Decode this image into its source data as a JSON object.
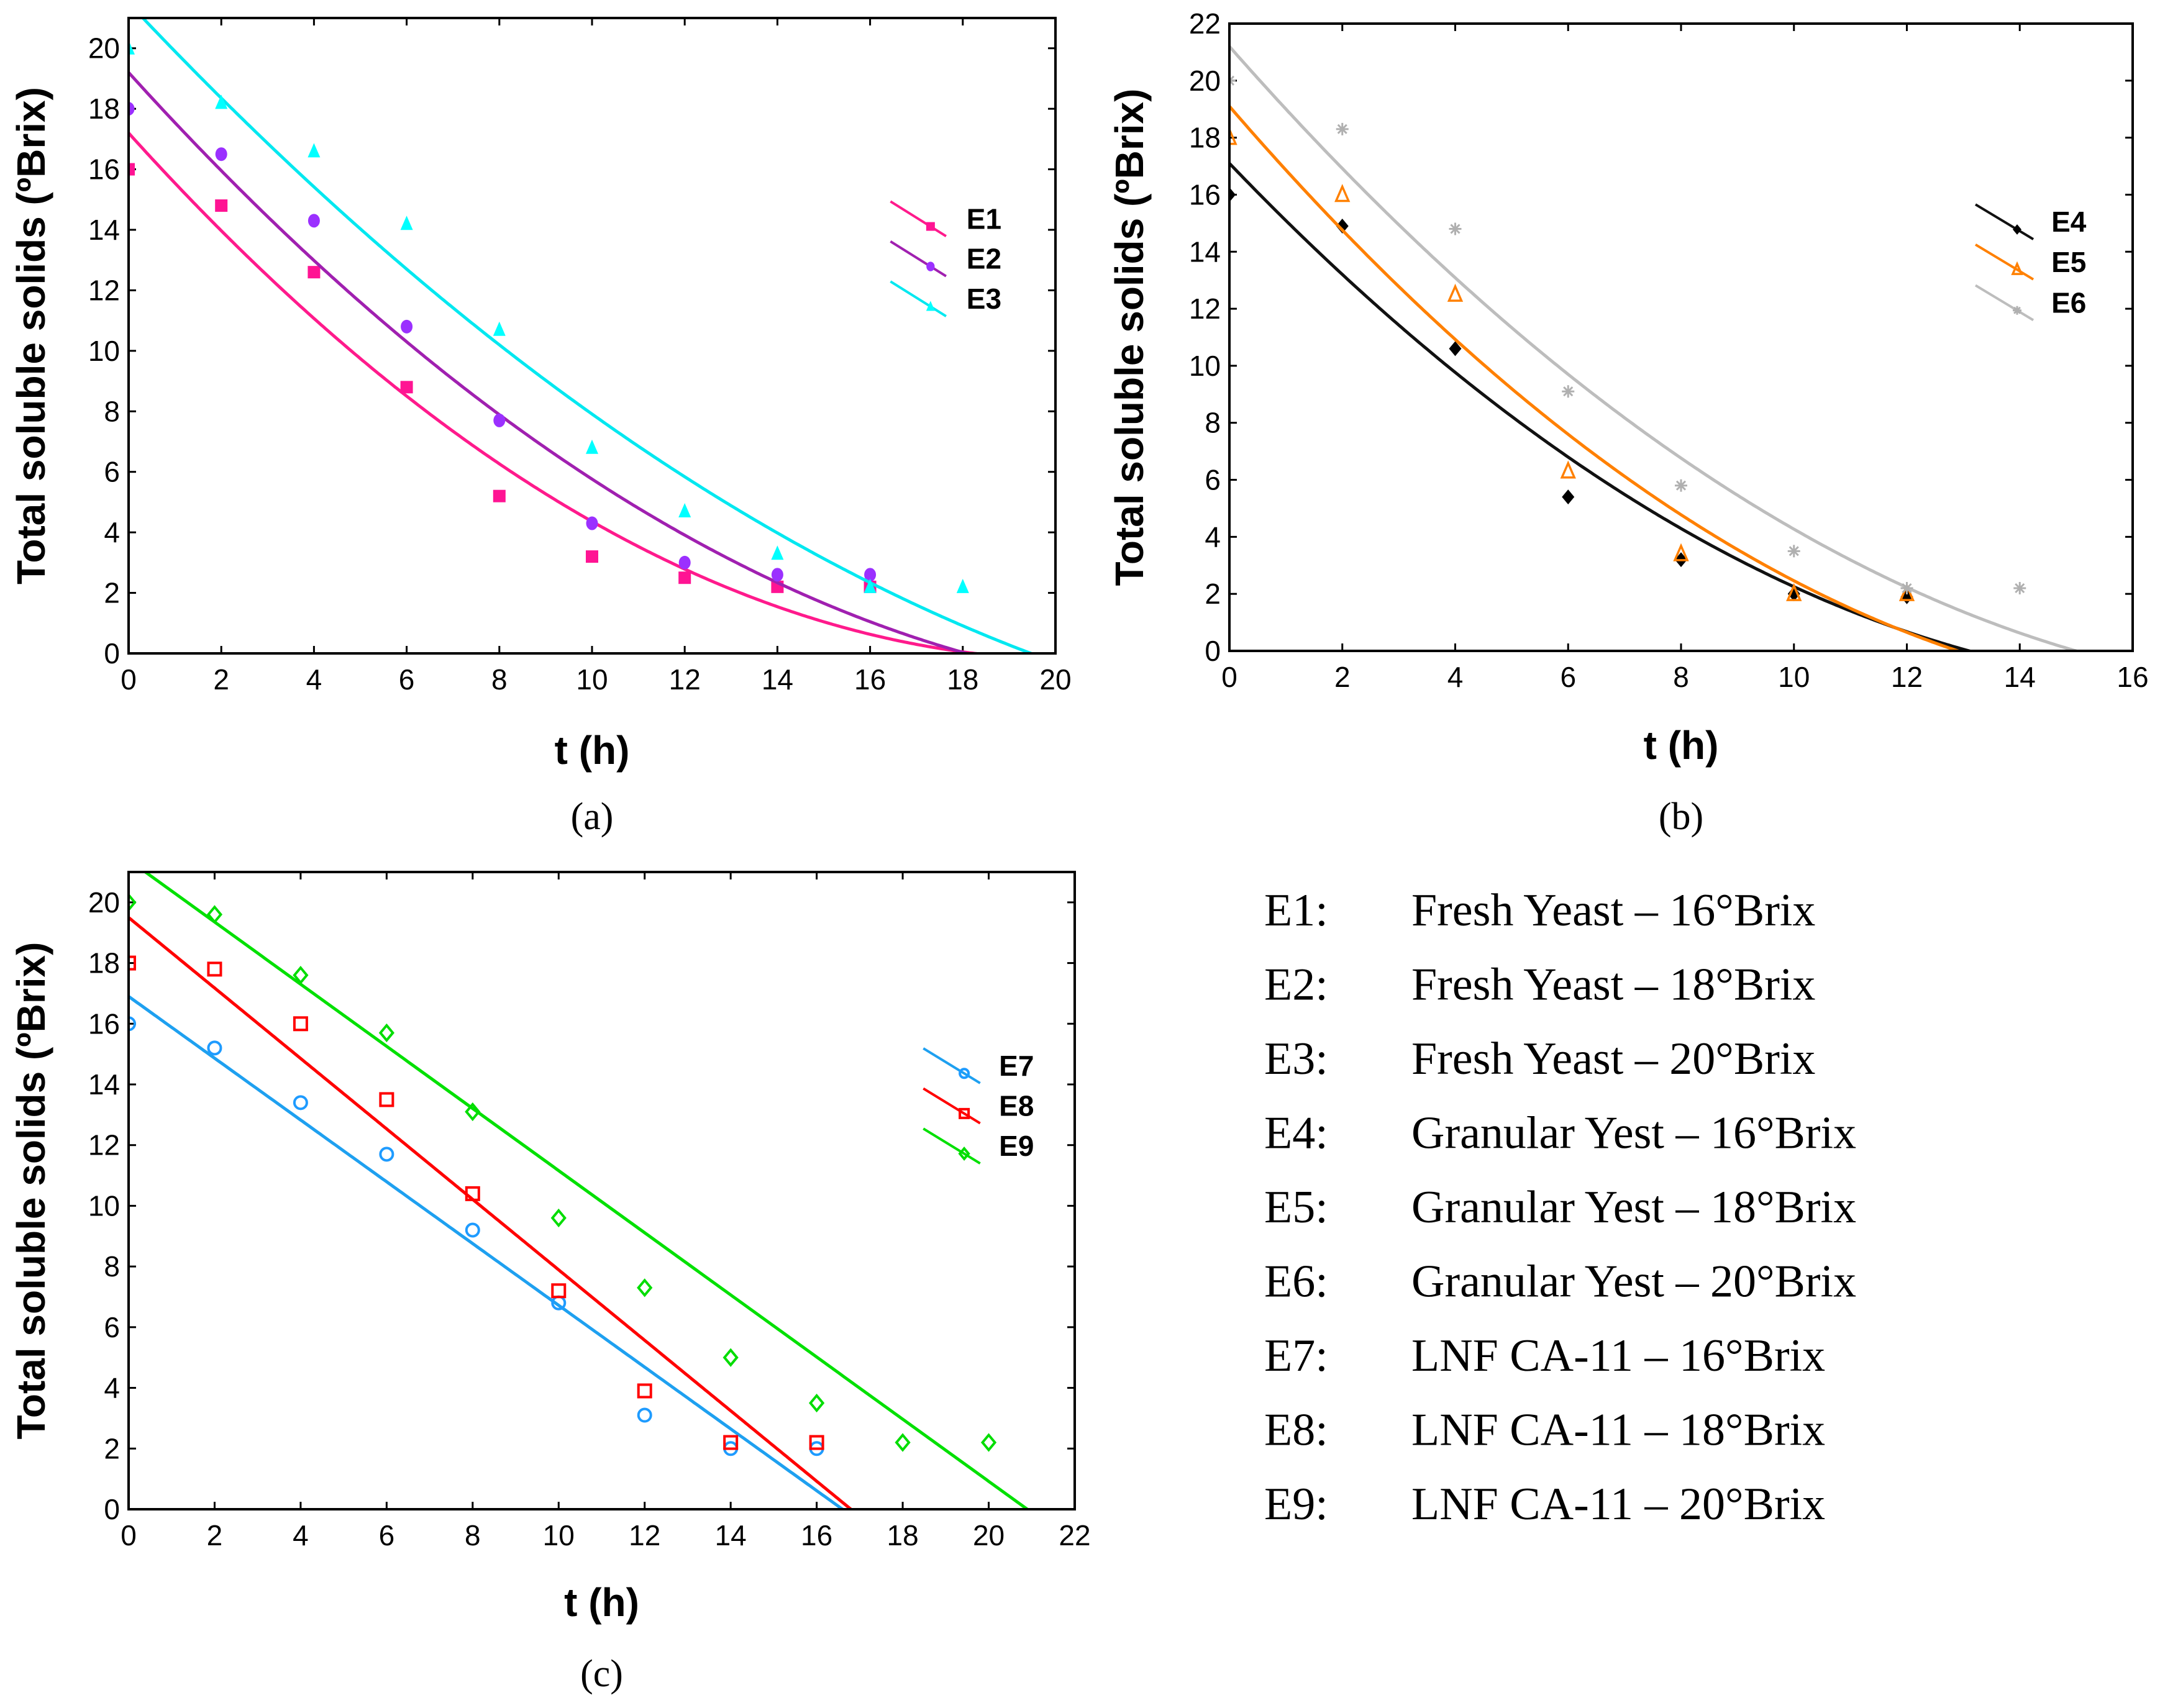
{
  "chart_data": [
    {
      "type": "scatter",
      "panel_label": "(a)",
      "xlabel": "t (h)",
      "ylabel": "Total soluble solids (ºBrix)",
      "xlim": [
        0,
        20
      ],
      "ylim": [
        0,
        21
      ],
      "xticks": [
        0,
        2,
        4,
        6,
        8,
        10,
        12,
        14,
        16,
        18,
        20
      ],
      "yticks": [
        0,
        2,
        4,
        6,
        8,
        10,
        12,
        14,
        16,
        18,
        20
      ],
      "legend_position": "right-upper",
      "series": [
        {
          "name": "E1",
          "color": "#ff1493",
          "line_color": "#ff1a8c",
          "marker": "square-filled",
          "x": [
            0,
            2,
            4,
            6,
            8,
            10,
            12,
            14,
            16
          ],
          "y": [
            16,
            14.8,
            12.6,
            8.8,
            5.2,
            3.2,
            2.5,
            2.2,
            2.2
          ],
          "fit": {
            "type": "quadratic",
            "coef": [
              17.2,
              -1.698,
              0.0414
            ]
          }
        },
        {
          "name": "E2",
          "color": "#9b30ff",
          "line_color": "#a020b0",
          "marker": "circle-filled",
          "x": [
            0,
            2,
            4,
            6,
            8,
            10,
            12,
            14,
            16
          ],
          "y": [
            18,
            16.5,
            14.3,
            10.8,
            7.7,
            4.3,
            3.0,
            2.6,
            2.6
          ],
          "fit": {
            "type": "quadratic",
            "coef": [
              19.2,
              -1.693,
              0.0349
            ]
          }
        },
        {
          "name": "E3",
          "color": "#00ffff",
          "line_color": "#00e8f0",
          "marker": "triangle-filled",
          "x": [
            0,
            2,
            4,
            6,
            8,
            10,
            12,
            14,
            16,
            18
          ],
          "y": [
            20,
            18.2,
            16.6,
            14.2,
            10.7,
            6.8,
            4.7,
            3.3,
            2.2,
            2.2
          ],
          "fit": {
            "type": "quadratic",
            "coef": [
              21.5,
              -1.628,
              0.0269
            ]
          }
        }
      ]
    },
    {
      "type": "scatter",
      "panel_label": "(b)",
      "xlabel": "t (h)",
      "ylabel": "Total soluble solids (ºBrix)",
      "xlim": [
        0,
        16
      ],
      "ylim": [
        0,
        22
      ],
      "xticks": [
        0,
        2,
        4,
        6,
        8,
        10,
        12,
        14,
        16
      ],
      "yticks": [
        0,
        2,
        4,
        6,
        8,
        10,
        12,
        14,
        16,
        18,
        20,
        22
      ],
      "legend_position": "right-upper",
      "series": [
        {
          "name": "E4",
          "color": "#000000",
          "line_color": "#111111",
          "marker": "diamond-filled",
          "x": [
            0,
            2,
            4,
            6,
            8,
            10,
            12
          ],
          "y": [
            16,
            14.9,
            10.6,
            5.4,
            3.2,
            2.0,
            1.9
          ],
          "fit": {
            "type": "quadratic",
            "coef": [
              17.1,
              -2.065,
              0.058
            ]
          }
        },
        {
          "name": "E5",
          "color": "#ff8000",
          "line_color": "#ff8000",
          "marker": "triangle-open",
          "x": [
            0,
            2,
            4,
            6,
            8,
            10,
            12
          ],
          "y": [
            18,
            16,
            12.5,
            6.3,
            3.4,
            2.0,
            2.0
          ],
          "fit": {
            "type": "quadratic",
            "coef": [
              19.1,
              -2.297,
              0.0633
            ]
          }
        },
        {
          "name": "E6",
          "color": "#b0b0b0",
          "line_color": "#bdbdbd",
          "marker": "asterisk",
          "x": [
            0,
            2,
            4,
            6,
            8,
            10,
            12,
            14
          ],
          "y": [
            20,
            18.3,
            14.8,
            9.1,
            5.8,
            3.5,
            2.2,
            2.2
          ],
          "fit": {
            "type": "quadratic",
            "coef": [
              21.2,
              -2.252,
              0.0559
            ]
          }
        }
      ]
    },
    {
      "type": "scatter",
      "panel_label": "(c)",
      "xlabel": "t (h)",
      "ylabel": "Total soluble solids (ºBrix)",
      "xlim": [
        0,
        22
      ],
      "ylim": [
        0,
        21
      ],
      "xticks": [
        0,
        2,
        4,
        6,
        8,
        10,
        12,
        14,
        16,
        18,
        20,
        22
      ],
      "yticks": [
        0,
        2,
        4,
        6,
        8,
        10,
        12,
        14,
        16,
        18,
        20
      ],
      "legend_position": "right-upper",
      "series": [
        {
          "name": "E7",
          "color": "#1e9bff",
          "line_color": "#1ea0f0",
          "marker": "circle-open",
          "x": [
            0,
            2,
            4,
            6,
            8,
            10,
            12,
            14,
            16
          ],
          "y": [
            16,
            15.2,
            13.4,
            11.7,
            9.2,
            6.8,
            3.1,
            2.0,
            2.0
          ],
          "fit": {
            "type": "linear",
            "coef": [
              16.9,
              -1.018
            ]
          }
        },
        {
          "name": "E8",
          "color": "#ff0000",
          "line_color": "#ff0000",
          "marker": "square-open",
          "x": [
            0,
            2,
            4,
            6,
            8,
            10,
            12,
            14,
            16
          ],
          "y": [
            18,
            17.8,
            16,
            13.5,
            10.4,
            7.2,
            3.9,
            2.2,
            2.2
          ],
          "fit": {
            "type": "linear",
            "coef": [
              19.5,
              -1.161
            ]
          }
        },
        {
          "name": "E9",
          "color": "#00dd00",
          "line_color": "#00e000",
          "marker": "diamond-open",
          "x": [
            0,
            2,
            4,
            6,
            8,
            10,
            12,
            14,
            16,
            18,
            20
          ],
          "y": [
            20,
            19.6,
            17.6,
            15.7,
            13.1,
            9.6,
            7.3,
            5.0,
            3.5,
            2.2,
            2.2
          ],
          "fit": {
            "type": "linear",
            "coef": [
              21.4,
              -1.024
            ]
          }
        }
      ]
    }
  ],
  "key": [
    {
      "code": "E1:",
      "description": "Fresh Yeast – 16°Brix"
    },
    {
      "code": "E2:",
      "description": "Fresh Yeast – 18°Brix"
    },
    {
      "code": "E3:",
      "description": "Fresh Yeast  – 20°Brix"
    },
    {
      "code": "E4:",
      "description": "Granular Yest – 16°Brix"
    },
    {
      "code": "E5:",
      "description": "Granular Yest – 18°Brix"
    },
    {
      "code": "E6:",
      "description": "Granular Yest – 20°Brix"
    },
    {
      "code": "E7:",
      "description": "LNF CA-11  – 16°Brix"
    },
    {
      "code": "E8:",
      "description": "LNF CA-11 – 18°Brix"
    },
    {
      "code": "E9:",
      "description": "LNF CA-11 – 20°Brix"
    }
  ]
}
